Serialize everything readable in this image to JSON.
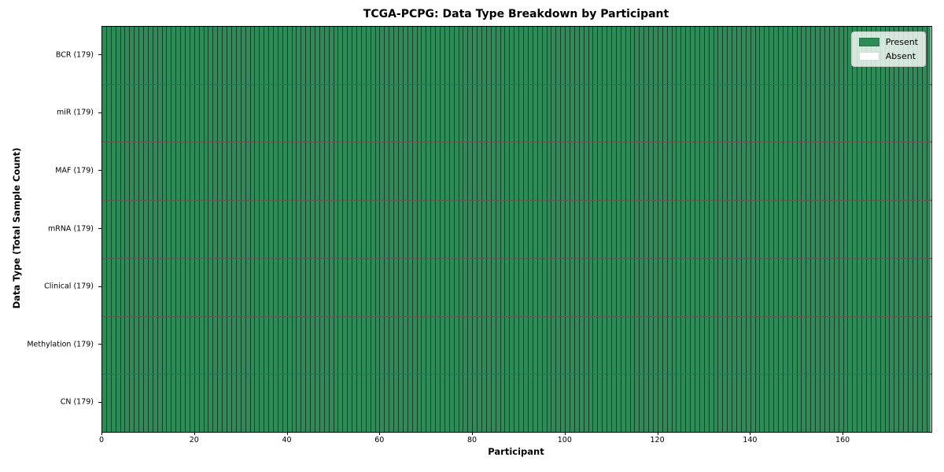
{
  "figure": {
    "title": "TCGA-PCPG: Data Type Breakdown by Participant",
    "xlabel": "Participant",
    "ylabel": "Data Type (Total Sample Count)"
  },
  "chart_data": {
    "type": "heatmap",
    "title": "TCGA-PCPG: Data Type Breakdown by Participant",
    "xlabel": "Participant",
    "ylabel": "Data Type (Total Sample Count)",
    "participants": 179,
    "x_range": [
      0,
      179
    ],
    "x_ticks": [
      0,
      20,
      40,
      60,
      80,
      100,
      120,
      140,
      160
    ],
    "rows": [
      {
        "label": "BCR (179)",
        "data_type": "BCR",
        "total_samples": 179,
        "present": 179,
        "absent": 0
      },
      {
        "label": "miR (179)",
        "data_type": "miR",
        "total_samples": 179,
        "present": 179,
        "absent": 0
      },
      {
        "label": "MAF (179)",
        "data_type": "MAF",
        "total_samples": 179,
        "present": 179,
        "absent": 0
      },
      {
        "label": "mRNA (179)",
        "data_type": "mRNA",
        "total_samples": 179,
        "present": 179,
        "absent": 0
      },
      {
        "label": "Clinical (179)",
        "data_type": "Clinical",
        "total_samples": 179,
        "present": 179,
        "absent": 0
      },
      {
        "label": "Methylation (179)",
        "data_type": "Methylation",
        "total_samples": 179,
        "present": 179,
        "absent": 0
      },
      {
        "label": "CN (179)",
        "data_type": "CN",
        "total_samples": 179,
        "present": 179,
        "absent": 0
      }
    ],
    "legend": {
      "position": "upper right",
      "items": [
        {
          "label": "Present",
          "color": "#2e8b57"
        },
        {
          "label": "Absent",
          "color": "#ffffff"
        }
      ]
    },
    "colors": {
      "present": "#2e8b57",
      "absent": "#ffffff",
      "cell_border": "rgba(0,0,0,0.55)",
      "row_border": "rgba(0,0,0,0.65)",
      "spine": "#000000"
    },
    "grid": true
  }
}
